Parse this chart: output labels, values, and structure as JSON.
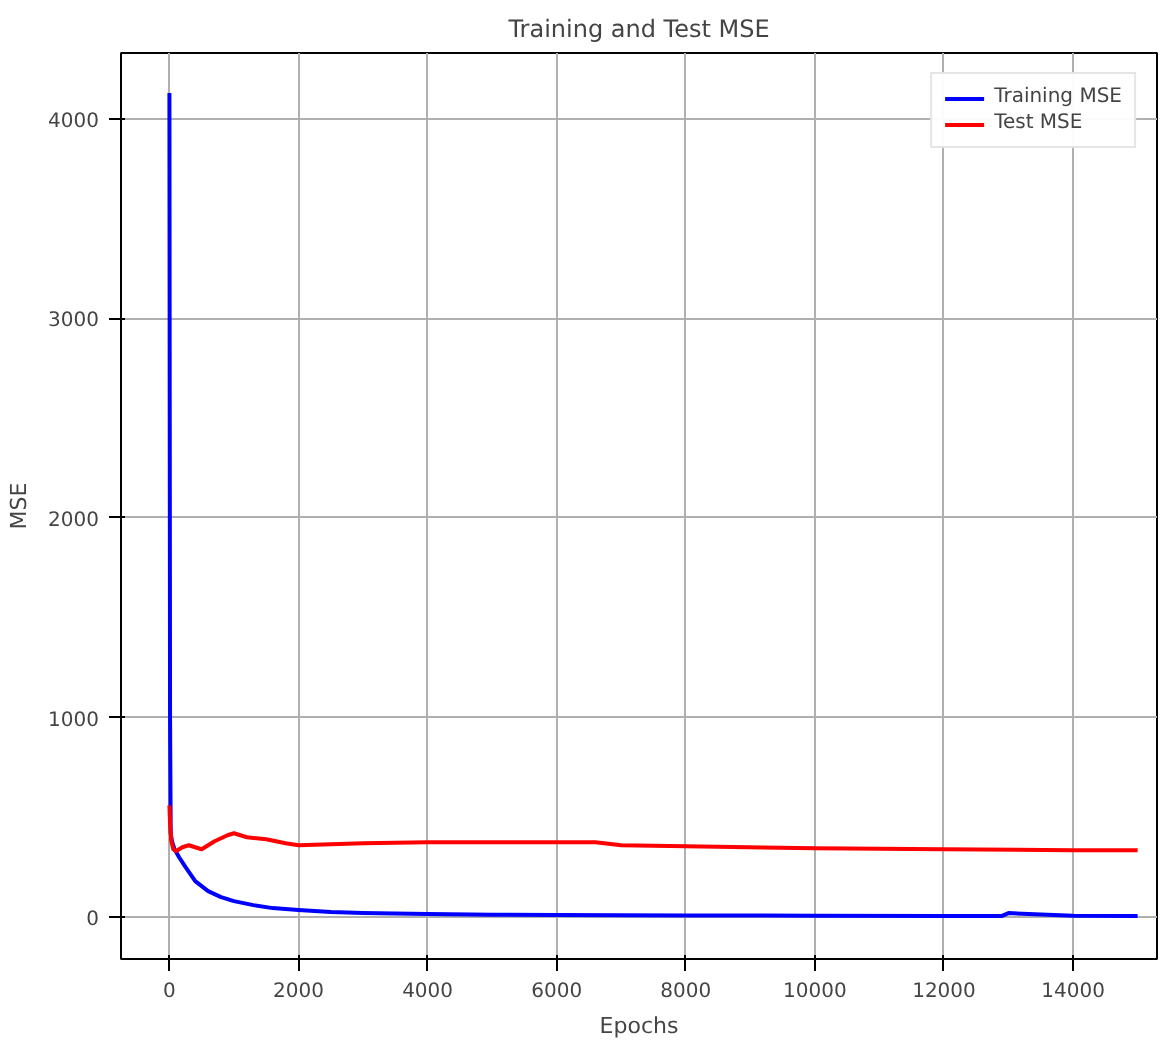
{
  "chart_data": {
    "type": "line",
    "title": "Training and Test MSE",
    "xlabel": "Epochs",
    "ylabel": "MSE",
    "xlim": [
      -750,
      15300
    ],
    "ylim": [
      -210,
      4330
    ],
    "xticks": [
      0,
      2000,
      4000,
      6000,
      8000,
      10000,
      12000,
      14000
    ],
    "yticks": [
      0,
      1000,
      2000,
      3000,
      4000
    ],
    "grid": true,
    "legend": "top right",
    "series": [
      {
        "name": "Training MSE",
        "color": "#0000ff",
        "x": [
          0,
          5,
          10,
          20,
          40,
          80,
          150,
          250,
          400,
          600,
          800,
          1000,
          1300,
          1600,
          2000,
          2500,
          3000,
          4000,
          5000,
          6000,
          8000,
          10000,
          12000,
          12900,
          13000,
          14000,
          15000
        ],
        "values": [
          4130,
          2500,
          1000,
          420,
          380,
          340,
          300,
          250,
          180,
          130,
          100,
          80,
          60,
          45,
          35,
          25,
          20,
          15,
          12,
          10,
          8,
          7,
          6,
          6,
          20,
          7,
          6
        ]
      },
      {
        "name": "Test MSE",
        "color": "#ff0000",
        "x": [
          0,
          10,
          30,
          60,
          100,
          200,
          300,
          500,
          700,
          900,
          1000,
          1200,
          1500,
          1800,
          2000,
          3000,
          4000,
          5000,
          6000,
          6600,
          7000,
          8000,
          10000,
          12000,
          14000,
          15000
        ],
        "values": [
          560,
          470,
          380,
          340,
          330,
          350,
          360,
          340,
          380,
          410,
          420,
          400,
          390,
          370,
          360,
          370,
          375,
          375,
          375,
          375,
          360,
          355,
          345,
          340,
          335,
          335
        ]
      }
    ]
  }
}
